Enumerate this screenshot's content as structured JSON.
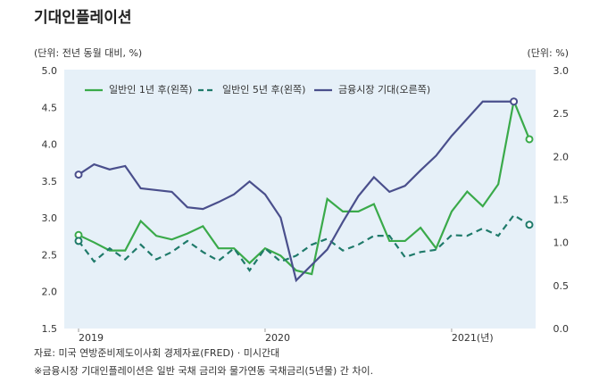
{
  "chart_data": {
    "type": "line",
    "title": "기대인플레이션",
    "y_label": "(단위: 전년 동월 대비, %)",
    "y2_label": "(단위: %)",
    "source": "자료: 미국 연방준비제도이사회 경제자료(FRED) · 미시간대",
    "note": "※금융시장 기대인플레이션은 일반 국채 금리와 물가연동 국채금리(5년물) 간 차이.",
    "x": [
      0,
      1,
      2,
      3,
      4,
      5,
      6,
      7,
      8,
      9,
      10,
      11,
      12,
      13,
      14,
      15,
      16,
      17,
      18,
      19,
      20,
      21,
      22,
      23,
      24,
      25,
      26,
      27,
      28,
      29
    ],
    "xlim": [
      0,
      29
    ],
    "xticks": [
      {
        "value": 0,
        "label": "2019"
      },
      {
        "value": 12,
        "label": "2020"
      },
      {
        "value": 24,
        "label": "2021(년)"
      }
    ],
    "ylim": [
      1.5,
      5.0
    ],
    "yticks": [
      {
        "value": 1.5,
        "label": "1.5"
      },
      {
        "value": 2.0,
        "label": "2.0"
      },
      {
        "value": 2.5,
        "label": "2.5"
      },
      {
        "value": 3.0,
        "label": "3.0"
      },
      {
        "value": 3.5,
        "label": "3.5"
      },
      {
        "value": 4.0,
        "label": "4.0"
      },
      {
        "value": 4.5,
        "label": "4.5"
      },
      {
        "value": 5.0,
        "label": "5.0"
      }
    ],
    "y2lim": [
      0.0,
      3.0
    ],
    "y2ticks": [
      {
        "value": 0.0,
        "label": "0.0"
      },
      {
        "value": 0.5,
        "label": "0.5"
      },
      {
        "value": 1.0,
        "label": "1.0"
      },
      {
        "value": 1.5,
        "label": "1.5"
      },
      {
        "value": 2.0,
        "label": "2.0"
      },
      {
        "value": 2.5,
        "label": "2.5"
      },
      {
        "value": 3.0,
        "label": "3.0"
      }
    ],
    "grid": false,
    "legend": "top",
    "series": [
      {
        "name": "일반인 1년 후(왼쪽)",
        "color": "#3aaa4a",
        "dash": false,
        "axis": "y",
        "values": [
          2.78,
          2.68,
          2.57,
          2.57,
          2.97,
          2.77,
          2.72,
          2.8,
          2.9,
          2.6,
          2.6,
          2.4,
          2.6,
          2.5,
          2.3,
          2.25,
          3.27,
          3.1,
          3.1,
          3.2,
          2.7,
          2.7,
          2.88,
          2.6,
          3.1,
          3.37,
          3.17,
          3.47,
          4.6,
          4.08
        ]
      },
      {
        "name": "일반인 5년 후(왼쪽)",
        "color": "#1f7a6a",
        "dash": true,
        "axis": "y",
        "values": [
          2.7,
          2.42,
          2.6,
          2.45,
          2.65,
          2.45,
          2.55,
          2.7,
          2.55,
          2.43,
          2.6,
          2.3,
          2.6,
          2.42,
          2.5,
          2.65,
          2.73,
          2.57,
          2.65,
          2.77,
          2.77,
          2.48,
          2.55,
          2.58,
          2.78,
          2.77,
          2.87,
          2.77,
          3.05,
          2.92
        ]
      },
      {
        "name": "금융시장 기대(오른쪽)",
        "color": "#4a4f8c",
        "dash": false,
        "axis": "y2",
        "values": [
          1.8,
          1.92,
          1.86,
          1.9,
          1.64,
          1.62,
          1.6,
          1.42,
          1.4,
          1.48,
          1.57,
          1.72,
          1.57,
          1.3,
          0.57,
          0.75,
          0.93,
          1.25,
          1.55,
          1.77,
          1.6,
          1.67,
          1.85,
          2.02,
          2.25,
          2.45,
          2.65,
          2.65,
          2.65,
          null
        ]
      }
    ]
  }
}
